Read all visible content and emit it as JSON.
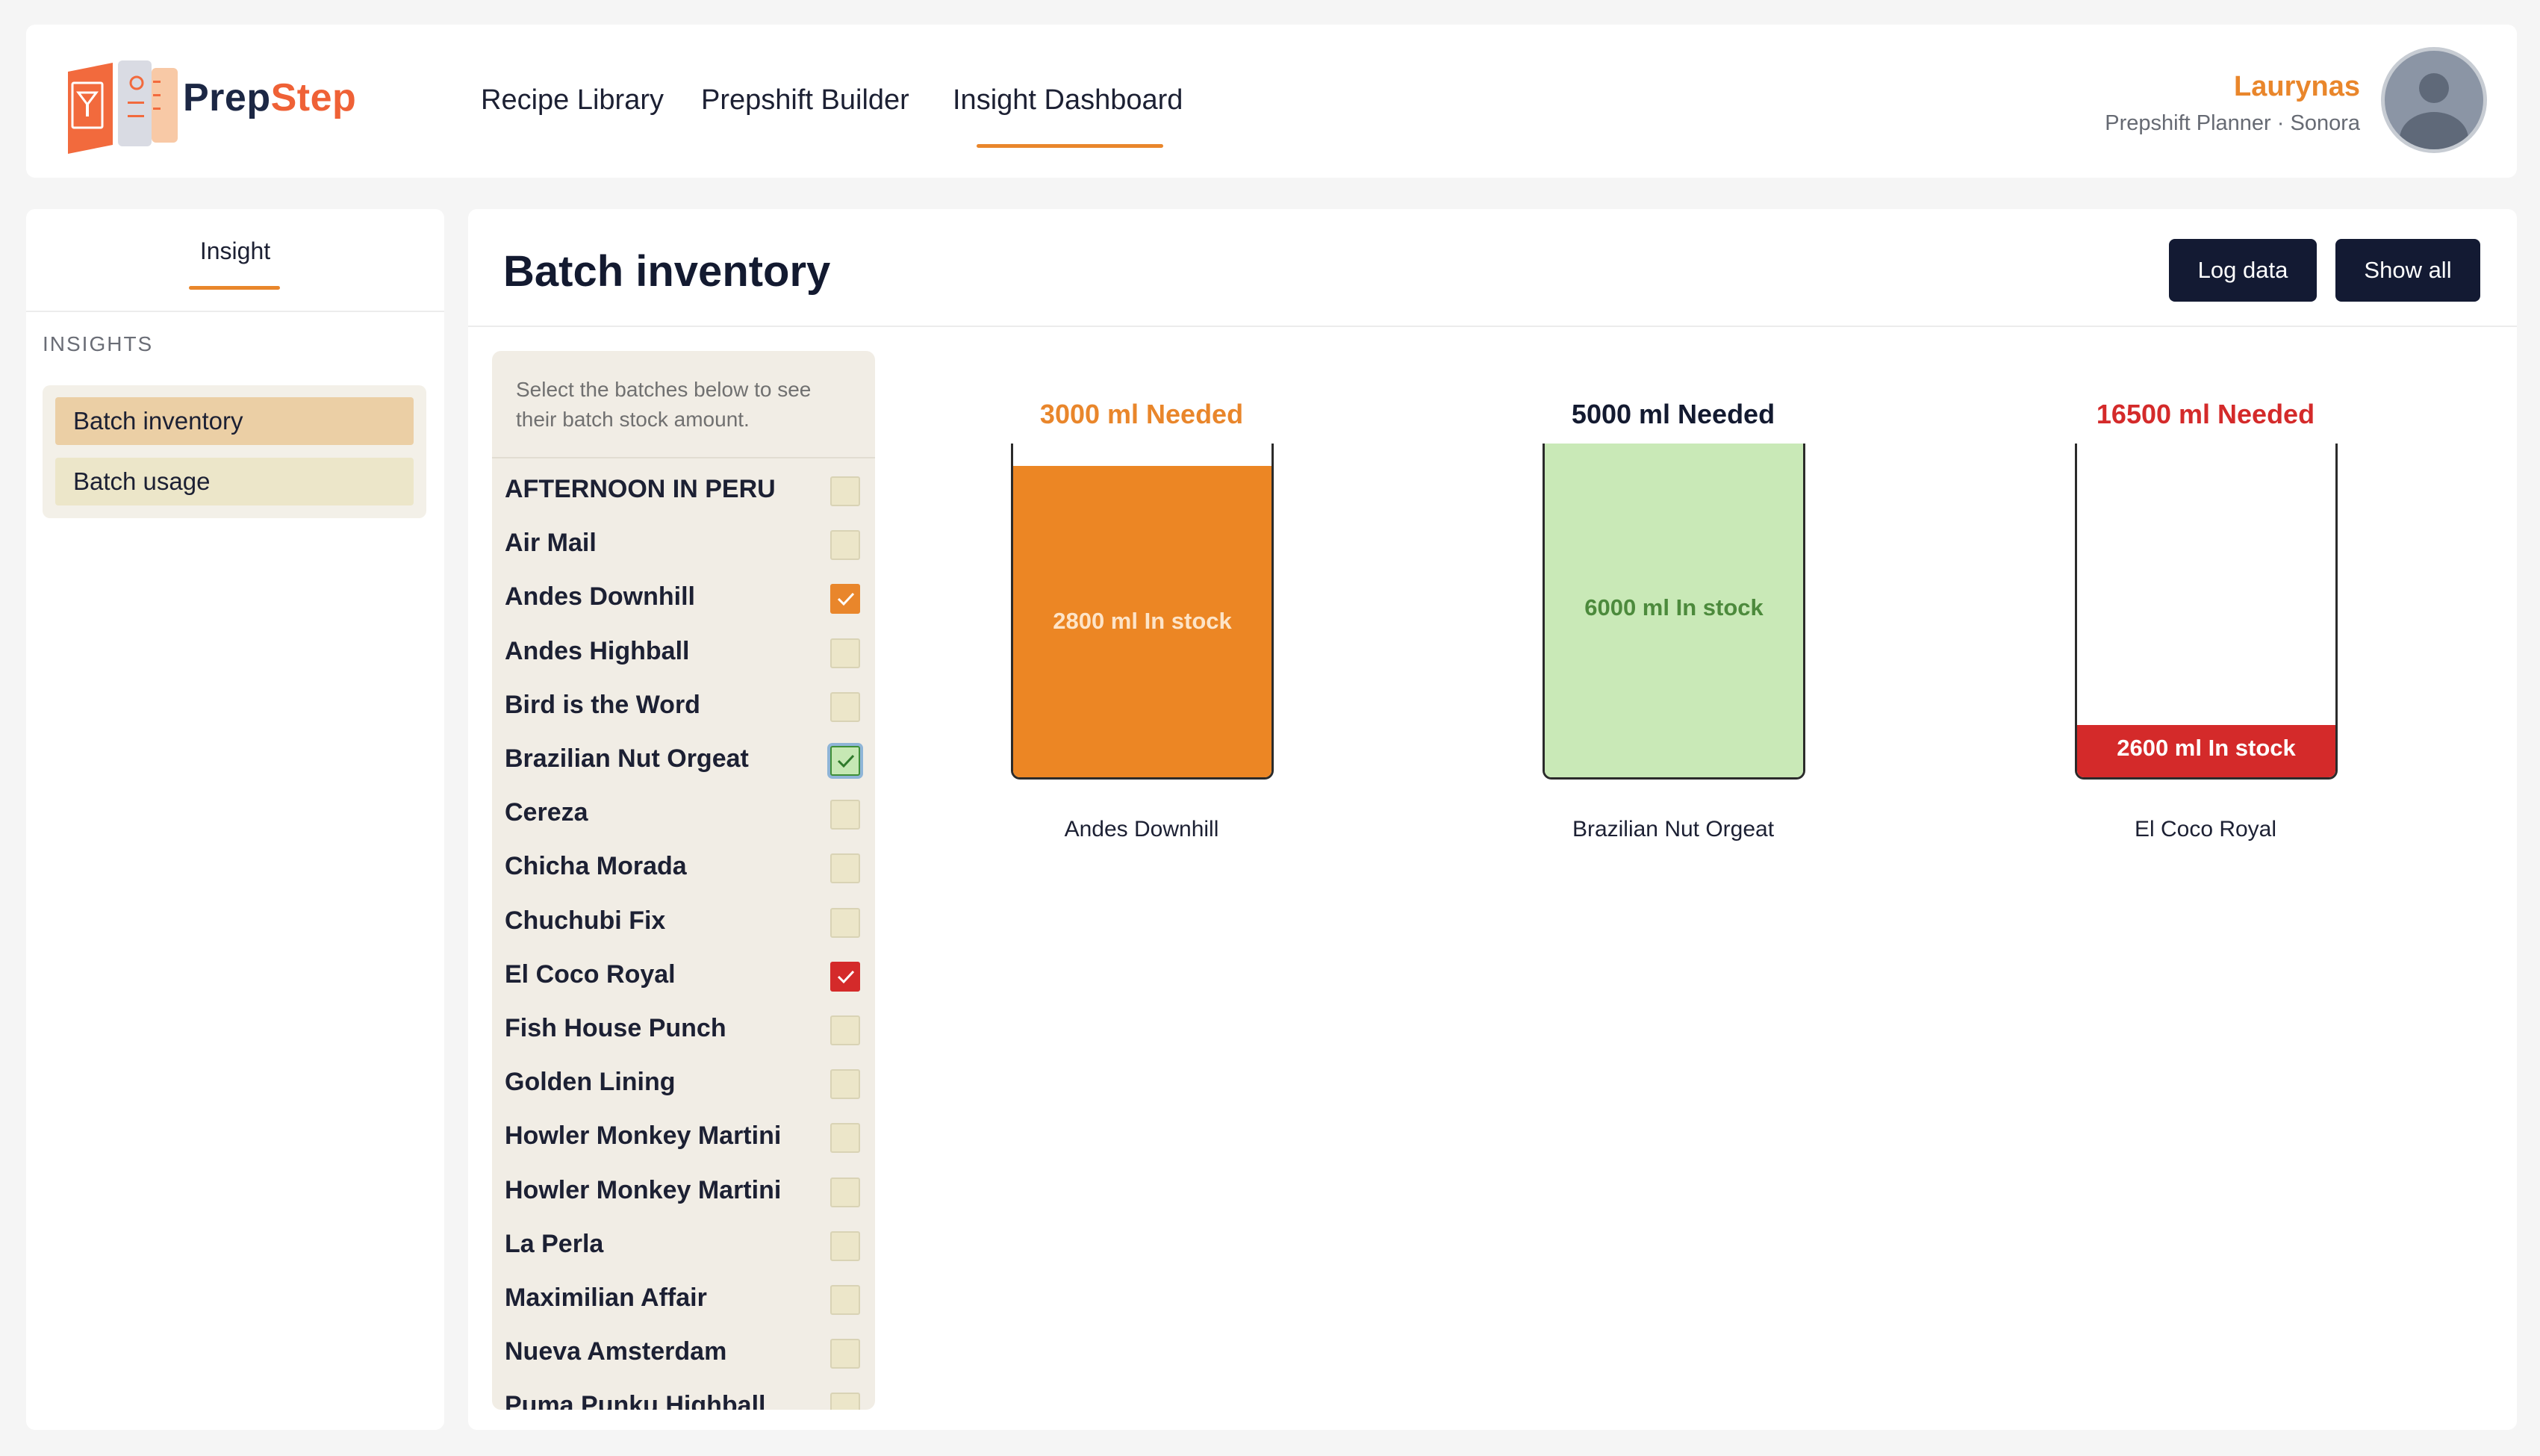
{
  "header": {
    "brand_prep": "Prep",
    "brand_step": "Step",
    "nav": [
      {
        "label": "Recipe Library"
      },
      {
        "label": "Prepshift Builder"
      },
      {
        "label": "Insight Dashboard",
        "active": true
      }
    ],
    "user": {
      "name": "Laurynas",
      "role": "Prepshift Planner · Sonora"
    }
  },
  "sidebar": {
    "tab": "Insight",
    "heading": "INSIGHTS",
    "items": [
      {
        "label": "Batch inventory",
        "active": true
      },
      {
        "label": "Batch usage",
        "active": false
      }
    ]
  },
  "main": {
    "title": "Batch inventory",
    "log_button": "Log data",
    "show_all_button": "Show all",
    "picker_hint": "Select the batches below to see their batch stock amount.",
    "batches": [
      {
        "label": "AFTERNOON IN PERU",
        "checked": false
      },
      {
        "label": "Air Mail",
        "checked": false
      },
      {
        "label": "Andes Downhill",
        "checked": true,
        "color": "orange"
      },
      {
        "label": "Andes Highball",
        "checked": false
      },
      {
        "label": "Bird is the Word",
        "checked": false
      },
      {
        "label": "Brazilian Nut Orgeat",
        "checked": true,
        "color": "green"
      },
      {
        "label": "Cereza",
        "checked": false
      },
      {
        "label": "Chicha Morada",
        "checked": false
      },
      {
        "label": "Chuchubi Fix",
        "checked": false
      },
      {
        "label": "El Coco Royal",
        "checked": true,
        "color": "red"
      },
      {
        "label": "Fish House Punch",
        "checked": false
      },
      {
        "label": "Golden Lining",
        "checked": false
      },
      {
        "label": "Howler Monkey Martini",
        "checked": false
      },
      {
        "label": "Howler Monkey Martini",
        "checked": false
      },
      {
        "label": "La Perla",
        "checked": false
      },
      {
        "label": "Maximilian Affair",
        "checked": false
      },
      {
        "label": "Nueva Amsterdam",
        "checked": false
      },
      {
        "label": "Puma Punku Highball",
        "checked": false
      }
    ],
    "inventory": [
      {
        "name": "Andes Downhill",
        "needed_ml": 3000,
        "stock_ml": 2800,
        "needed_label": "3000 ml Needed",
        "stock_label": "2800 ml In stock",
        "fill_color": "#ec8624",
        "label_color": "#e9862b",
        "stock_text_color": "#fde4c8"
      },
      {
        "name": "Brazilian Nut Orgeat",
        "needed_ml": 5000,
        "stock_ml": 6000,
        "needed_label": "5000 ml Needed",
        "stock_label": "6000 ml In stock",
        "fill_color": "#c9e9b7",
        "label_color": "#131a30",
        "stock_text_color": "#4c8a3c"
      },
      {
        "name": "El Coco Royal",
        "needed_ml": 16500,
        "stock_ml": 2600,
        "needed_label": "16500 ml Needed",
        "stock_label": "2600 ml In stock",
        "fill_color": "#d42a2a",
        "label_color": "#d42a2a",
        "stock_text_color": "#ffffff"
      }
    ]
  }
}
